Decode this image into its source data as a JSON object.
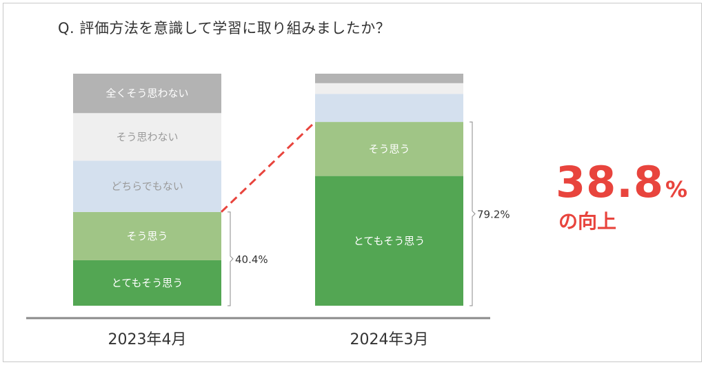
{
  "question": "Q. 評価方法を意識して学習に取り組みましたか？",
  "highlight": {
    "value": "38.8",
    "unit": "%",
    "caption": "の向上",
    "color": "#e8443d"
  },
  "chart_data": {
    "type": "bar",
    "stacked": true,
    "categories": [
      "2023年4月",
      "2024年3月"
    ],
    "ylim": [
      0,
      100
    ],
    "series": [
      {
        "name": "とてもそう思う",
        "values": [
          19.6,
          55.9
        ],
        "color": "#53a653",
        "label_color": "#ffffff"
      },
      {
        "name": "そう思う",
        "values": [
          20.8,
          23.3
        ],
        "color": "#a0c586",
        "label_color": "#ffffff"
      },
      {
        "name": "どちらでもない",
        "values": [
          22.1,
          12.1
        ],
        "color": "#d4e0ee",
        "label_color": "#9a9a9a"
      },
      {
        "name": "そう思わない",
        "values": [
          20.5,
          4.6
        ],
        "color": "#efefef",
        "label_color": "#9a9a9a"
      },
      {
        "name": "全くそう思わない",
        "values": [
          17.0,
          4.1
        ],
        "color": "#b3b3b3",
        "label_color": "#ffffff"
      }
    ],
    "segment_labels_shown": [
      [
        true,
        true,
        true,
        true,
        true
      ],
      [
        true,
        true,
        false,
        false,
        false
      ]
    ],
    "brackets": [
      "40.4%",
      "79.2%"
    ],
    "connector": {
      "style": "dashed",
      "color": "#e8443d"
    },
    "grid": false,
    "legend": "none"
  }
}
